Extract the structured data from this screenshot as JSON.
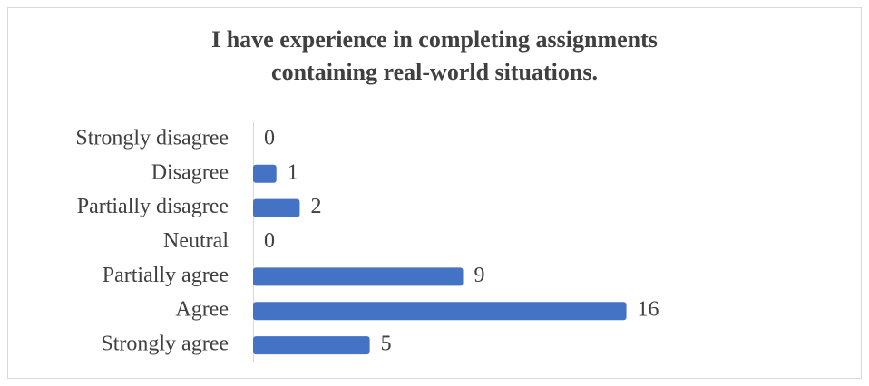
{
  "chart_data": {
    "type": "bar",
    "orientation": "horizontal",
    "title": "I have experience in completing assignments containing real-world situations.",
    "categories": [
      "Strongly disagree",
      "Disagree",
      "Partially disagree",
      "Neutral",
      "Partially agree",
      "Agree",
      "Strongly agree"
    ],
    "values": [
      0,
      1,
      2,
      0,
      9,
      16,
      5
    ],
    "color": "#4472c4",
    "xlim": [
      0,
      18
    ]
  }
}
